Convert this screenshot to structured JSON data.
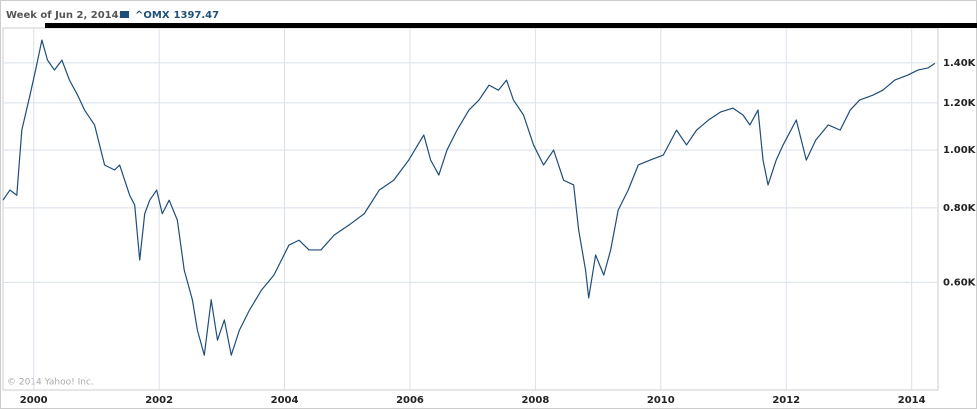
{
  "chart_data": {
    "type": "line",
    "header": "Week of Jun 2, 2014:",
    "copyright": "© 2014 Yahoo! Inc.",
    "log_scale": true,
    "grid": true,
    "x": [
      1999.51,
      1999.62,
      1999.73,
      1999.81,
      1999.94,
      2000.03,
      2000.13,
      2000.22,
      2000.33,
      2000.45,
      2000.57,
      2000.7,
      2000.81,
      2000.97,
      2001.13,
      2001.29,
      2001.37,
      2001.53,
      2001.61,
      2001.69,
      2001.77,
      2001.85,
      2001.96,
      2002.05,
      2002.16,
      2002.29,
      2002.4,
      2002.53,
      2002.61,
      2002.72,
      2002.83,
      2002.93,
      2003.04,
      2003.15,
      2003.28,
      2003.44,
      2003.63,
      2003.83,
      2004.07,
      2004.23,
      2004.39,
      2004.58,
      2004.79,
      2005.03,
      2005.27,
      2005.51,
      2005.74,
      2005.98,
      2006.22,
      2006.33,
      2006.46,
      2006.59,
      2006.75,
      2006.94,
      2007.1,
      2007.26,
      2007.41,
      2007.54,
      2007.65,
      2007.81,
      2007.97,
      2008.13,
      2008.29,
      2008.45,
      2008.61,
      2008.69,
      2008.8,
      2008.85,
      2008.96,
      2009.09,
      2009.2,
      2009.32,
      2009.48,
      2009.64,
      2009.83,
      2010.04,
      2010.25,
      2010.41,
      2010.57,
      2010.76,
      2010.95,
      2011.15,
      2011.31,
      2011.42,
      2011.55,
      2011.63,
      2011.71,
      2011.84,
      2011.95,
      2012.16,
      2012.32,
      2012.47,
      2012.67,
      2012.86,
      2013.02,
      2013.17,
      2013.38,
      2013.54,
      2013.73,
      2013.94,
      2014.1,
      2014.26,
      2014.37
    ],
    "series": [
      {
        "name": "^OMX",
        "color": "#1f4e79",
        "values": [
          824,
          857,
          840,
          1080,
          1236,
          1362,
          1529,
          1415,
          1362,
          1415,
          1310,
          1236,
          1167,
          1102,
          944,
          926,
          944,
          840,
          809,
          654,
          782,
          824,
          857,
          782,
          824,
          763,
          629,
          561,
          499,
          453,
          561,
          480,
          519,
          453,
          499,
          539,
          582,
          617,
          693,
          706,
          680,
          680,
          720,
          749,
          782,
          857,
          890,
          962,
          1060,
          962,
          908,
          1000,
          1080,
          1167,
          1213,
          1285,
          1260,
          1310,
          1213,
          1145,
          1020,
          944,
          1000,
          890,
          874,
          734,
          629,
          565,
          667,
          617,
          680,
          793,
          857,
          944,
          962,
          981,
          1080,
          1020,
          1080,
          1123,
          1158,
          1176,
          1145,
          1102,
          1167,
          962,
          874,
          962,
          1020,
          1123,
          962,
          1039,
          1102,
          1080,
          1167,
          1213,
          1236,
          1260,
          1310,
          1336,
          1362,
          1373,
          1397.47
        ]
      }
    ],
    "xlim": [
      1999.51,
      2014.42
    ],
    "xticks": [
      2000,
      2002,
      2004,
      2006,
      2008,
      2010,
      2012,
      2014
    ],
    "ylim": [
      396,
      1602
    ],
    "yticks": [
      {
        "value": 600,
        "label": "0.60K"
      },
      {
        "value": 800,
        "label": "0.80K"
      },
      {
        "value": 1000,
        "label": "1.00K"
      },
      {
        "value": 1200,
        "label": "1.20K"
      },
      {
        "value": 1400,
        "label": "1.40K"
      }
    ]
  }
}
